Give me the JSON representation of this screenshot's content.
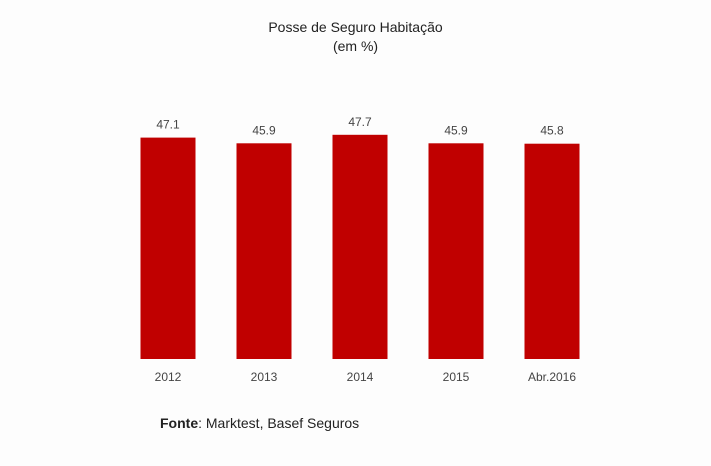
{
  "chart_data": {
    "type": "bar",
    "title": "Posse de Seguro Habitação",
    "subtitle": "(em %)",
    "categories": [
      "2012",
      "2013",
      "2014",
      "2015",
      "Abr.2016"
    ],
    "values": [
      47.1,
      45.9,
      47.7,
      45.9,
      45.8
    ],
    "value_labels": [
      "47.1",
      "45.9",
      "47.7",
      "45.9",
      "45.8"
    ],
    "xlabel": "",
    "ylabel": "",
    "ylim": [
      0,
      50
    ],
    "grid": false,
    "legend": "none",
    "bar_color": "#c00000"
  },
  "source": {
    "label": "Fonte",
    "text": ": Marktest, Basef Seguros"
  }
}
